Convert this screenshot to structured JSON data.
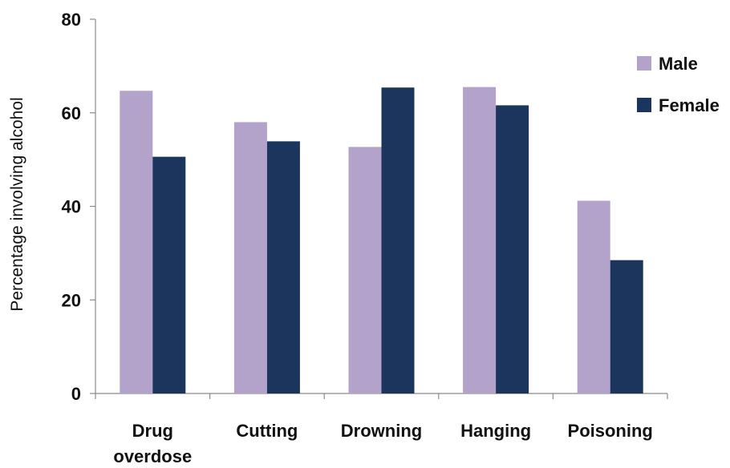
{
  "chart_data": {
    "type": "bar",
    "categories": [
      [
        "Drug",
        "overdose"
      ],
      [
        "Cutting"
      ],
      [
        "Drowning"
      ],
      [
        "Hanging"
      ],
      [
        "Poisoning"
      ]
    ],
    "series": [
      {
        "name": "Male",
        "color": "#b3a2c9",
        "values": [
          64.7,
          58.0,
          52.7,
          65.5,
          41.2
        ]
      },
      {
        "name": "Female",
        "color": "#1b355c",
        "values": [
          50.6,
          53.9,
          65.4,
          61.6,
          28.5
        ]
      }
    ],
    "ylabel": "Percentage involving alcohol",
    "ylim": [
      0,
      80
    ],
    "yticks": [
      0,
      20,
      40,
      60,
      80
    ],
    "grid": false,
    "legend": "top-right"
  }
}
